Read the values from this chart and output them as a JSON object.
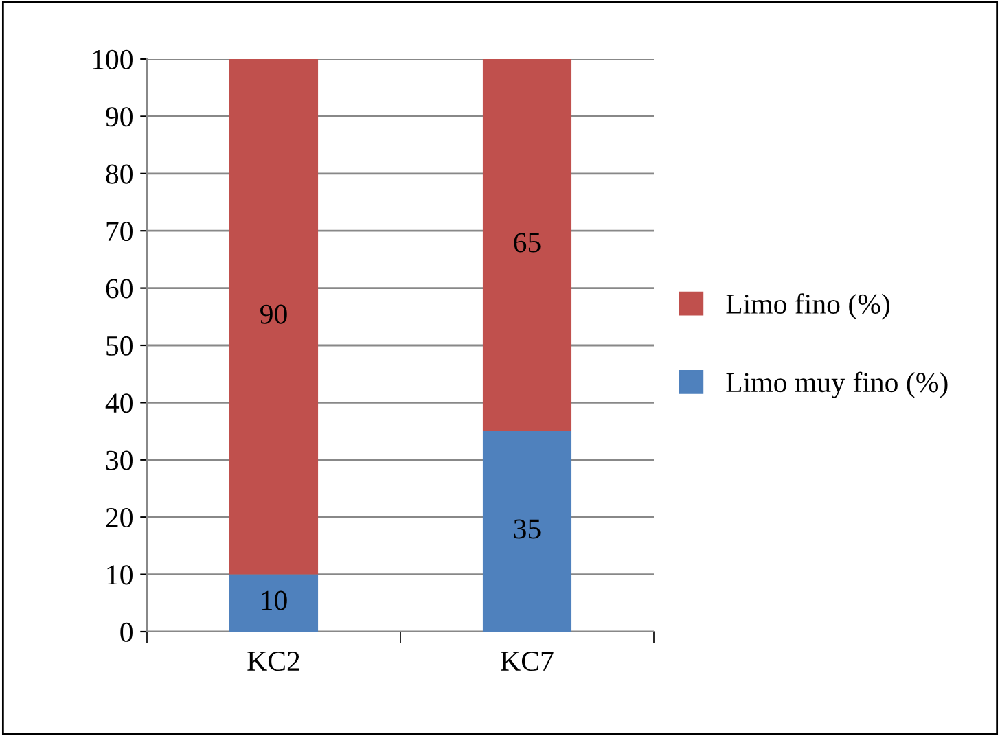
{
  "chart_data": {
    "type": "bar",
    "stacked": true,
    "categories": [
      "KC2",
      "KC7"
    ],
    "series": [
      {
        "name": "Limo muy fino (%)",
        "color": "#4f81bd",
        "values": [
          10,
          35
        ]
      },
      {
        "name": "Limo fino (%)",
        "color": "#c0504d",
        "values": [
          90,
          65
        ]
      }
    ],
    "ylim": [
      0,
      100
    ],
    "yticks": [
      0,
      10,
      20,
      30,
      40,
      50,
      60,
      70,
      80,
      90,
      100
    ],
    "grid": "y",
    "legend": "right",
    "data_labels": true
  }
}
